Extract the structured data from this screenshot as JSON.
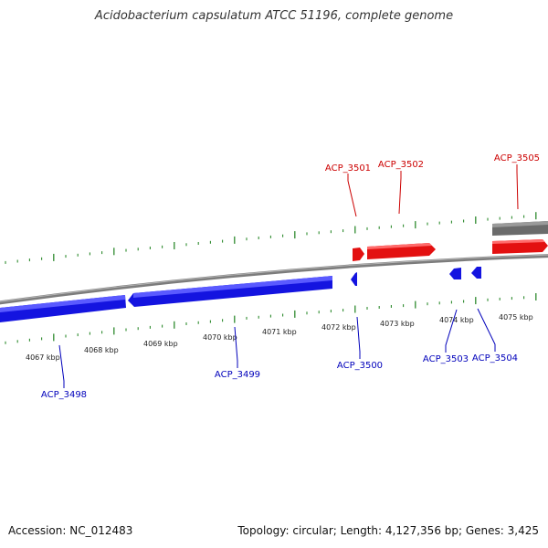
{
  "title": "Acidobacterium capsulatum ATCC 51196, complete genome",
  "footer": {
    "accession": "Accession: NC_012483",
    "summary": "Topology: circular; Length: 4,127,356 bp; Genes: 3,425"
  },
  "colors": {
    "forward": "#e31010",
    "reverse": "#1414e0",
    "other": "#6b6b6b",
    "backbone": "#7c7c7c",
    "ticks": "#2e8b2e",
    "forward_label": "#cc0000",
    "reverse_label": "#0000bb"
  },
  "scale_labels": [
    "4067 kbp",
    "4068 kbp",
    "4069 kbp",
    "4070 kbp",
    "4071 kbp",
    "4072 kbp",
    "4073 kbp",
    "4074 kbp",
    "4075 kbp"
  ],
  "forward_genes": [
    {
      "label": "ACP_3501"
    },
    {
      "label": "ACP_3502"
    },
    {
      "label": "ACP_3505"
    }
  ],
  "reverse_genes": [
    {
      "label": "ACP_3498"
    },
    {
      "label": "ACP_3499"
    },
    {
      "label": "ACP_3500"
    },
    {
      "label": "ACP_3503"
    },
    {
      "label": "ACP_3504"
    }
  ]
}
